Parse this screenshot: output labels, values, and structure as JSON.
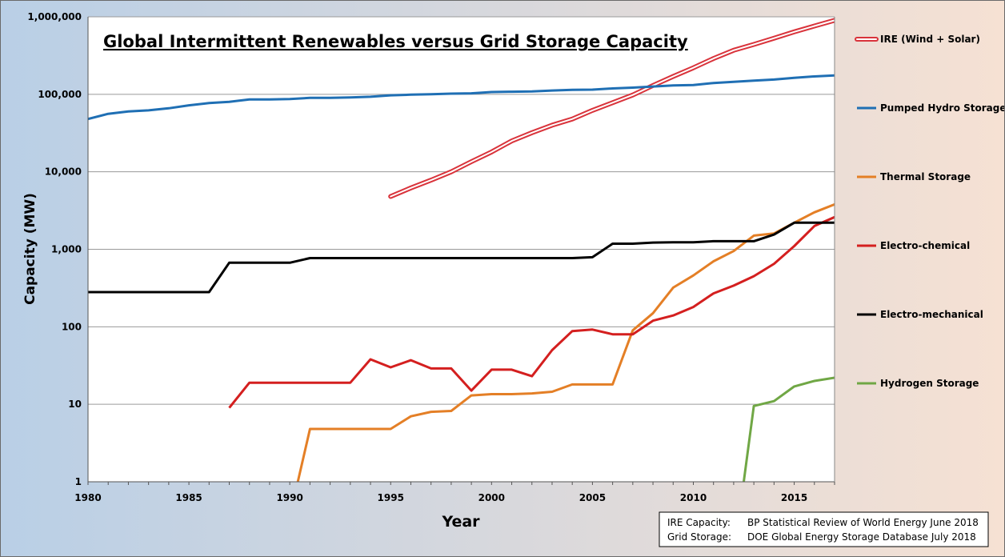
{
  "colors": {
    "background_left": "#b9cfe6",
    "background_right": "#f6e1d3",
    "ire": "#d9333b",
    "pumped_hydro": "#1f6fb4",
    "thermal": "#e47f26",
    "electro_chemical": "#d41f1f",
    "electro_mechanical": "#000000",
    "hydrogen": "#70a745",
    "grid": "#9a9a9a"
  },
  "chart_data": {
    "type": "line",
    "title": "Global Intermittent Renewables versus Grid Storage Capacity",
    "xlabel": "Year",
    "ylabel": "Capacity (MW)",
    "y_scale": "log",
    "xlim": [
      1980,
      2017
    ],
    "ylim": [
      1,
      1000000
    ],
    "grid": "horizontal",
    "legend_position": "right",
    "x_ticks": [
      "1980",
      "1985",
      "1990",
      "1995",
      "2000",
      "2005",
      "2010",
      "2015"
    ],
    "y_ticks": [
      "1",
      "10",
      "100",
      "1,000",
      "10,000",
      "100,000",
      "1,000,000"
    ],
    "series": [
      {
        "name": "IRE (Wind + Solar)",
        "color": "#d9333b",
        "style": "double",
        "points": [
          [
            1995,
            4800
          ],
          [
            1996,
            6200
          ],
          [
            1997,
            7800
          ],
          [
            1998,
            10000
          ],
          [
            1999,
            13500
          ],
          [
            2000,
            18000
          ],
          [
            2001,
            25000
          ],
          [
            2002,
            32000
          ],
          [
            2003,
            40000
          ],
          [
            2004,
            48000
          ],
          [
            2005,
            62000
          ],
          [
            2006,
            78000
          ],
          [
            2007,
            98000
          ],
          [
            2008,
            130000
          ],
          [
            2009,
            170000
          ],
          [
            2010,
            220000
          ],
          [
            2011,
            290000
          ],
          [
            2012,
            370000
          ],
          [
            2013,
            440000
          ],
          [
            2014,
            530000
          ],
          [
            2015,
            640000
          ],
          [
            2016,
            760000
          ],
          [
            2017,
            900000
          ]
        ]
      },
      {
        "name": "Pumped Hydro Storage",
        "color": "#1f6fb4",
        "style": "solid",
        "points": [
          [
            1980,
            48000
          ],
          [
            1981,
            56000
          ],
          [
            1982,
            60000
          ],
          [
            1983,
            62000
          ],
          [
            1984,
            66000
          ],
          [
            1985,
            72000
          ],
          [
            1986,
            77000
          ],
          [
            1987,
            80000
          ],
          [
            1988,
            86000
          ],
          [
            1989,
            86000
          ],
          [
            1990,
            87000
          ],
          [
            1991,
            90000
          ],
          [
            1992,
            90000
          ],
          [
            1993,
            91000
          ],
          [
            1994,
            93000
          ],
          [
            1995,
            97000
          ],
          [
            1996,
            99000
          ],
          [
            1997,
            100000
          ],
          [
            1998,
            102000
          ],
          [
            1999,
            103000
          ],
          [
            2000,
            107000
          ],
          [
            2001,
            108000
          ],
          [
            2002,
            109000
          ],
          [
            2003,
            112000
          ],
          [
            2004,
            114000
          ],
          [
            2005,
            115000
          ],
          [
            2006,
            119000
          ],
          [
            2007,
            122000
          ],
          [
            2008,
            126000
          ],
          [
            2009,
            130000
          ],
          [
            2010,
            132000
          ],
          [
            2011,
            140000
          ],
          [
            2012,
            145000
          ],
          [
            2013,
            150000
          ],
          [
            2014,
            155000
          ],
          [
            2015,
            163000
          ],
          [
            2016,
            170000
          ],
          [
            2017,
            175000
          ]
        ]
      },
      {
        "name": "Thermal Storage",
        "color": "#e47f26",
        "style": "solid",
        "points": [
          [
            1990.4,
            1
          ],
          [
            1991,
            4.8
          ],
          [
            1992,
            4.8
          ],
          [
            1993,
            4.8
          ],
          [
            1994,
            4.8
          ],
          [
            1995,
            4.8
          ],
          [
            1996,
            7
          ],
          [
            1997,
            8
          ],
          [
            1998,
            8.2
          ],
          [
            1999,
            13
          ],
          [
            2000,
            13.5
          ],
          [
            2001,
            13.5
          ],
          [
            2002,
            13.8
          ],
          [
            2003,
            14.5
          ],
          [
            2004,
            18
          ],
          [
            2005,
            18
          ],
          [
            2006,
            18
          ],
          [
            2007,
            90
          ],
          [
            2008,
            150
          ],
          [
            2009,
            320
          ],
          [
            2010,
            460
          ],
          [
            2011,
            700
          ],
          [
            2012,
            950
          ],
          [
            2013,
            1500
          ],
          [
            2014,
            1600
          ],
          [
            2015,
            2200
          ],
          [
            2016,
            3000
          ],
          [
            2017,
            3800
          ]
        ]
      },
      {
        "name": "Electro-chemical",
        "color": "#d41f1f",
        "style": "solid",
        "points": [
          [
            1987,
            9
          ],
          [
            1988,
            19
          ],
          [
            1989,
            19
          ],
          [
            1990,
            19
          ],
          [
            1991,
            19
          ],
          [
            1992,
            19
          ],
          [
            1993,
            19
          ],
          [
            1994,
            38
          ],
          [
            1995,
            30
          ],
          [
            1996,
            37
          ],
          [
            1997,
            29
          ],
          [
            1998,
            29
          ],
          [
            1999,
            15
          ],
          [
            2000,
            28
          ],
          [
            2001,
            28
          ],
          [
            2002,
            23
          ],
          [
            2003,
            50
          ],
          [
            2004,
            88
          ],
          [
            2005,
            92
          ],
          [
            2006,
            80
          ],
          [
            2007,
            80
          ],
          [
            2008,
            120
          ],
          [
            2009,
            140
          ],
          [
            2010,
            180
          ],
          [
            2011,
            270
          ],
          [
            2012,
            340
          ],
          [
            2013,
            450
          ],
          [
            2014,
            650
          ],
          [
            2015,
            1100
          ],
          [
            2016,
            2000
          ],
          [
            2017,
            2600
          ]
        ]
      },
      {
        "name": "Electro-mechanical",
        "color": "#000000",
        "style": "solid",
        "points": [
          [
            1980,
            280
          ],
          [
            1986,
            280
          ],
          [
            1987,
            670
          ],
          [
            1988,
            670
          ],
          [
            1989,
            670
          ],
          [
            1990,
            670
          ],
          [
            1991,
            770
          ],
          [
            1992,
            770
          ],
          [
            1993,
            770
          ],
          [
            1994,
            770
          ],
          [
            1995,
            770
          ],
          [
            1996,
            770
          ],
          [
            1997,
            770
          ],
          [
            1998,
            770
          ],
          [
            1999,
            770
          ],
          [
            2000,
            770
          ],
          [
            2001,
            770
          ],
          [
            2002,
            770
          ],
          [
            2003,
            770
          ],
          [
            2004,
            770
          ],
          [
            2005,
            790
          ],
          [
            2006,
            1180
          ],
          [
            2007,
            1180
          ],
          [
            2008,
            1220
          ],
          [
            2009,
            1230
          ],
          [
            2010,
            1230
          ],
          [
            2011,
            1270
          ],
          [
            2012,
            1270
          ],
          [
            2013,
            1270
          ],
          [
            2014,
            1550
          ],
          [
            2015,
            2200
          ],
          [
            2016,
            2200
          ],
          [
            2017,
            2200
          ]
        ]
      },
      {
        "name": "Hydrogen Storage",
        "color": "#70a745",
        "style": "solid",
        "points": [
          [
            2012.5,
            1
          ],
          [
            2013,
            9.5
          ],
          [
            2014,
            11
          ],
          [
            2015,
            17
          ],
          [
            2016,
            20
          ],
          [
            2017,
            22
          ]
        ]
      }
    ]
  },
  "source_box": {
    "line1_label": "IRE Capacity:",
    "line1_value": "BP Statistical Review of World Energy June 2018",
    "line2_label": "Grid Storage:",
    "line2_value": "DOE Global Energy Storage Database July 2018"
  }
}
